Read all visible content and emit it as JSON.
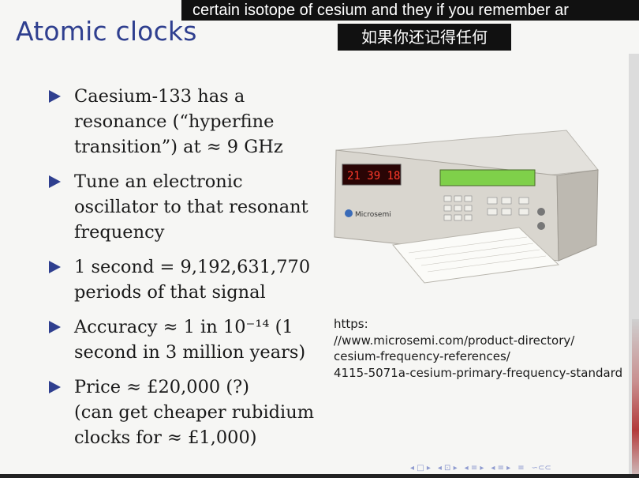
{
  "slide": {
    "title": "Atomic clocks",
    "bullets": [
      {
        "lines": [
          "Caesium-133 has a",
          "resonance (“hyperfine",
          "transition”) at ≈ 9 GHz"
        ]
      },
      {
        "lines": [
          "Tune an electronic",
          "oscillator to that resonant",
          "frequency"
        ]
      },
      {
        "lines": [
          "1 second = 9,192,631,770",
          "periods of that signal"
        ]
      },
      {
        "lines": [
          "Accuracy ≈ 1 in 10⁻¹⁴ (1",
          "second in 3 million years)"
        ]
      },
      {
        "lines": [
          "Price ≈ £20,000 (?)",
          "(can get cheaper rubidium",
          "clocks for ≈ £1,000)"
        ]
      }
    ],
    "caption_lines": [
      "https:",
      "//www.microsemi.com/product-directory/",
      "cesium-frequency-references/",
      "4115-5071a-cesium-primary-frequency-standard"
    ],
    "device": {
      "display_time": "21 39 18",
      "brand": "Microsemi"
    }
  },
  "subtitles": {
    "english": "certain isotope of cesium and they if you remember ar",
    "chinese": "如果你还记得任何"
  },
  "navigation": {
    "symbols": [
      "◂ □ ▸",
      "◂ ⊡ ▸",
      "◂ ≡ ▸",
      "◂ ≡ ▸",
      "≡",
      "∽⊂⊂"
    ]
  },
  "colors": {
    "accent": "#2f3f8f",
    "background": "#f6f6f4",
    "subtitle_bg": "#111111"
  }
}
